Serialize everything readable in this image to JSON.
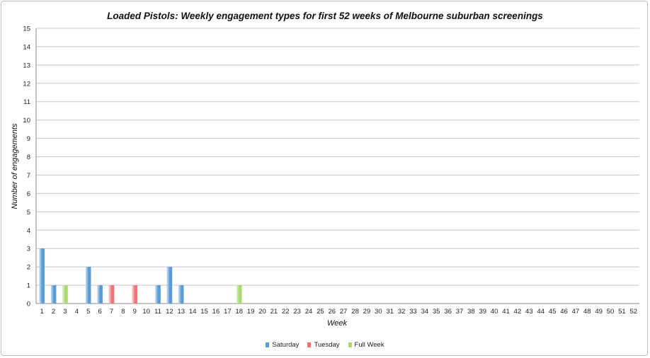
{
  "chart_data": {
    "type": "bar",
    "title": "Loaded Pistols: Weekly engagement types for first 52 weeks of Melbourne suburban screenings",
    "xlabel": "Week",
    "ylabel": "Number of engagements",
    "ylim": [
      0,
      15
    ],
    "yticks": [
      0,
      1,
      2,
      3,
      4,
      5,
      6,
      7,
      8,
      9,
      10,
      11,
      12,
      13,
      14,
      15
    ],
    "grid": true,
    "legend_position": "bottom",
    "categories": [
      "1",
      "2",
      "3",
      "4",
      "5",
      "6",
      "7",
      "8",
      "9",
      "10",
      "11",
      "12",
      "13",
      "14",
      "15",
      "16",
      "17",
      "18",
      "19",
      "20",
      "21",
      "22",
      "23",
      "24",
      "25",
      "26",
      "27",
      "28",
      "29",
      "30",
      "31",
      "32",
      "33",
      "34",
      "35",
      "36",
      "37",
      "38",
      "39",
      "40",
      "41",
      "42",
      "43",
      "44",
      "45",
      "46",
      "47",
      "48",
      "49",
      "50",
      "51",
      "52"
    ],
    "series": [
      {
        "name": "Saturday",
        "color": "#5b9bd5",
        "values": [
          3,
          1,
          0,
          0,
          2,
          1,
          0,
          0,
          0,
          0,
          1,
          2,
          1,
          0,
          0,
          0,
          0,
          0,
          0,
          0,
          0,
          0,
          0,
          0,
          0,
          0,
          0,
          0,
          0,
          0,
          0,
          0,
          0,
          0,
          0,
          0,
          0,
          0,
          0,
          0,
          0,
          0,
          0,
          0,
          0,
          0,
          0,
          0,
          0,
          0,
          0,
          0
        ]
      },
      {
        "name": "Tuesday",
        "color": "#f07474",
        "values": [
          0,
          0,
          0,
          0,
          0,
          0,
          1,
          0,
          1,
          0,
          0,
          0,
          0,
          0,
          0,
          0,
          0,
          0,
          0,
          0,
          0,
          0,
          0,
          0,
          0,
          0,
          0,
          0,
          0,
          0,
          0,
          0,
          0,
          0,
          0,
          0,
          0,
          0,
          0,
          0,
          0,
          0,
          0,
          0,
          0,
          0,
          0,
          0,
          0,
          0,
          0,
          0
        ]
      },
      {
        "name": "Full Week",
        "color": "#a9d86e",
        "values": [
          0,
          0,
          1,
          0,
          0,
          0,
          0,
          0,
          0,
          0,
          0,
          0,
          0,
          0,
          0,
          0,
          0,
          1,
          0,
          0,
          0,
          0,
          0,
          0,
          0,
          0,
          0,
          0,
          0,
          0,
          0,
          0,
          0,
          0,
          0,
          0,
          0,
          0,
          0,
          0,
          0,
          0,
          0,
          0,
          0,
          0,
          0,
          0,
          0,
          0,
          0,
          0
        ]
      }
    ]
  }
}
